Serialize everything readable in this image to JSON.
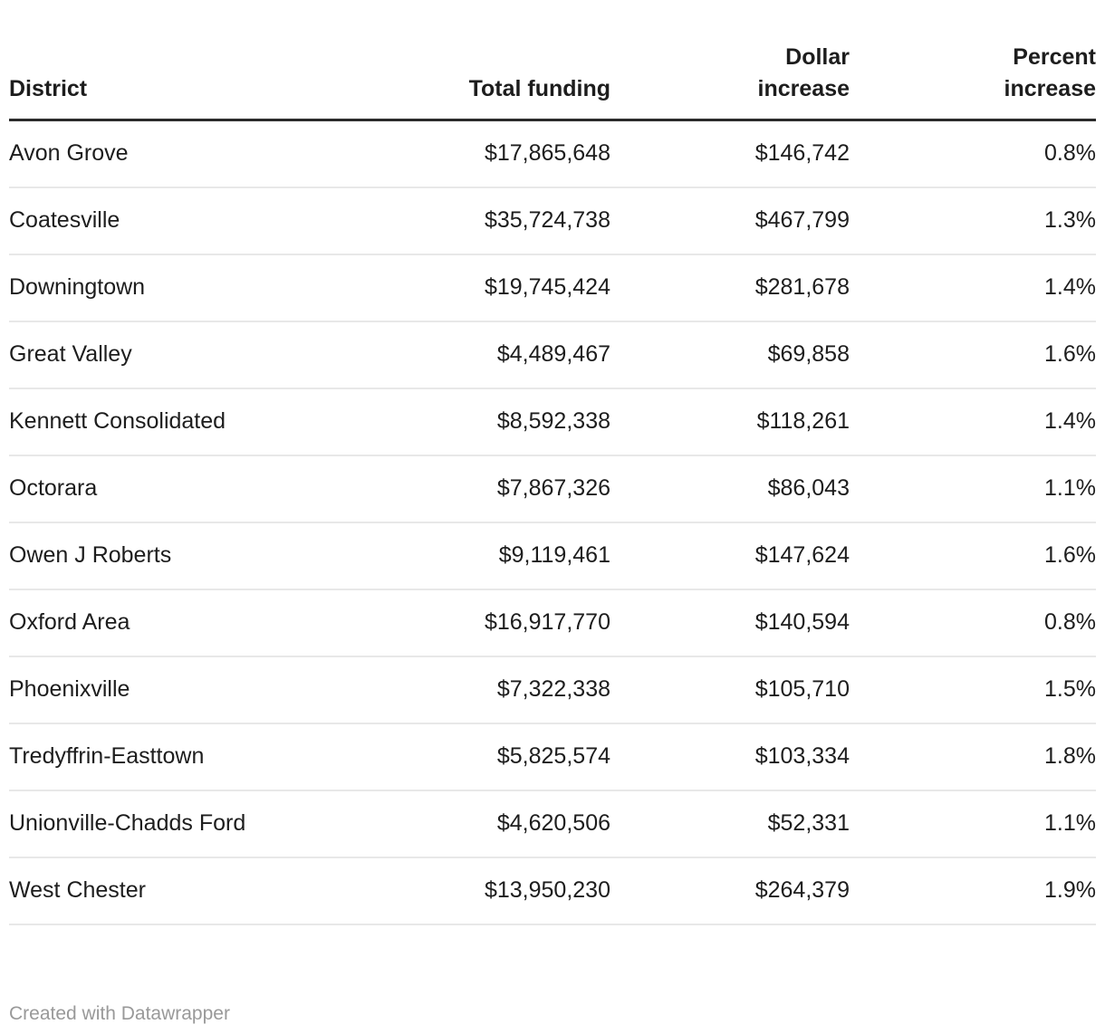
{
  "chart_data": {
    "type": "table",
    "columns": [
      "District",
      "Total funding",
      "Dollar increase",
      "Percent increase"
    ],
    "rows": [
      [
        "Avon Grove",
        "$17,865,648",
        "$146,742",
        "0.8%"
      ],
      [
        "Coatesville",
        "$35,724,738",
        "$467,799",
        "1.3%"
      ],
      [
        "Downingtown",
        "$19,745,424",
        "$281,678",
        "1.4%"
      ],
      [
        "Great Valley",
        "$4,489,467",
        "$69,858",
        "1.6%"
      ],
      [
        "Kennett Consolidated",
        "$8,592,338",
        "$118,261",
        "1.4%"
      ],
      [
        "Octorara",
        "$7,867,326",
        "$86,043",
        "1.1%"
      ],
      [
        "Owen J Roberts",
        "$9,119,461",
        "$147,624",
        "1.6%"
      ],
      [
        "Oxford Area",
        "$16,917,770",
        "$140,594",
        "0.8%"
      ],
      [
        "Phoenixville",
        "$7,322,338",
        "$105,710",
        "1.5%"
      ],
      [
        "Tredyffrin-Easttown",
        "$5,825,574",
        "$103,334",
        "1.8%"
      ],
      [
        "Unionville-Chadds Ford",
        "$4,620,506",
        "$52,331",
        "1.1%"
      ],
      [
        "West Chester",
        "$13,950,230",
        "$264,379",
        "1.9%"
      ]
    ],
    "title": "",
    "layout": {
      "header_border": true,
      "row_separators": true,
      "numeric_columns_right_aligned": true
    }
  },
  "header_display": [
    "District",
    "Total funding",
    "Dollar\nincrease",
    "Percent\nincrease"
  ],
  "footer": {
    "credit": "Created with Datawrapper"
  },
  "colors": {
    "text": "#1d1d1d",
    "header_border": "#2b2b2b",
    "row_border": "#e8e8e8",
    "credit_text": "#999999",
    "background": "#ffffff"
  }
}
